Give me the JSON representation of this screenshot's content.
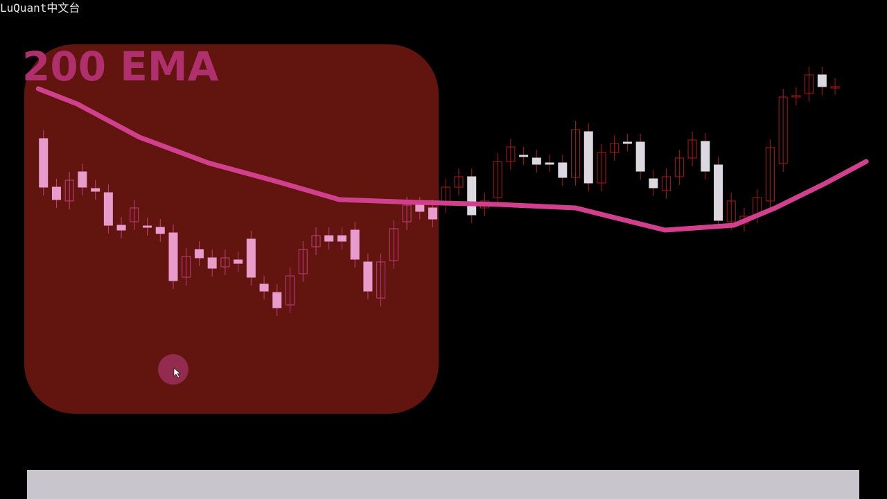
{
  "header": {
    "brand": "LuQuant中文台"
  },
  "chart_data": {
    "type": "candlestick",
    "title": "200 EMA",
    "ylim": [
      0,
      720
    ],
    "xlim": [
      0,
      64.4
    ],
    "open": [
      520,
      450,
      430,
      472,
      448,
      442,
      395,
      400,
      394,
      392,
      384,
      320,
      360,
      348,
      335,
      345,
      375,
      310,
      298,
      280,
      325,
      364,
      380,
      380,
      388,
      342,
      290,
      344,
      400,
      424,
      420,
      425,
      450,
      465,
      420,
      435,
      487,
      496,
      492,
      485,
      485,
      464,
      530,
      456,
      500,
      515,
      515,
      462,
      445,
      465,
      492,
      516,
      482,
      400,
      398,
      410,
      430,
      484,
      580,
      585,
      612,
      595
    ],
    "high": [
      532,
      462,
      472,
      484,
      460,
      454,
      407,
      432,
      406,
      404,
      396,
      362,
      372,
      360,
      360,
      357,
      387,
      322,
      310,
      334,
      372,
      392,
      392,
      392,
      400,
      354,
      354,
      402,
      436,
      436,
      432,
      462,
      477,
      477,
      442,
      499,
      520,
      508,
      504,
      497,
      497,
      545,
      542,
      512,
      525,
      527,
      527,
      474,
      477,
      504,
      530,
      528,
      494,
      442,
      420,
      447,
      519,
      592,
      594,
      624,
      624,
      607
    ],
    "low": [
      438,
      420,
      418,
      438,
      432,
      383,
      376,
      388,
      380,
      371,
      303,
      308,
      336,
      321,
      323,
      328,
      308,
      288,
      264,
      268,
      313,
      352,
      360,
      360,
      334,
      288,
      278,
      332,
      388,
      403,
      392,
      413,
      438,
      398,
      408,
      423,
      475,
      482,
      471,
      472,
      452,
      452,
      444,
      444,
      488,
      502,
      461,
      437,
      433,
      453,
      480,
      461,
      390,
      388,
      386,
      398,
      418,
      472,
      568,
      573,
      583,
      583
    ],
    "close": [
      450,
      432,
      460,
      450,
      444,
      395,
      388,
      420,
      392,
      383,
      315,
      350,
      348,
      333,
      348,
      340,
      320,
      300,
      276,
      322,
      360,
      380,
      372,
      372,
      346,
      300,
      342,
      390,
      424,
      415,
      404,
      450,
      465,
      410,
      430,
      487,
      508,
      494,
      483,
      484,
      464,
      533,
      456,
      500,
      513,
      514,
      473,
      449,
      465,
      492,
      518,
      473,
      402,
      430,
      408,
      435,
      507,
      580,
      582,
      612,
      595,
      595
    ],
    "ema": {
      "x": [
        0.6,
        3.6,
        8.4,
        13.7,
        19,
        23.8,
        29.7,
        36.1,
        42,
        48.9,
        54.2,
        57.4,
        61.2,
        64.4
      ],
      "values": [
        592,
        570,
        522,
        485,
        458,
        432,
        428,
        425,
        420,
        388,
        395,
        420,
        455,
        487
      ],
      "color": "#d0408c"
    }
  }
}
